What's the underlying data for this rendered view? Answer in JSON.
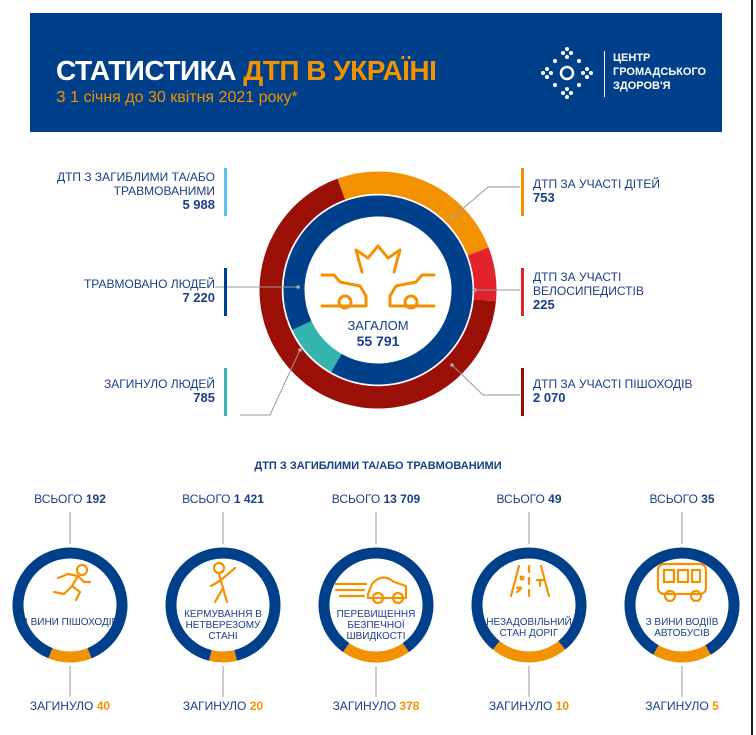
{
  "header": {
    "title_white": "СТАТИСТИКА",
    "title_accent": "ДТП В УКРАЇНІ",
    "subtitle": "З 1 січня до 30 квітня 2021 року*",
    "logo_text": [
      "ЦЕНТР",
      "ГРОМАДСЬКОГО",
      "ЗДОРОВ'Я"
    ]
  },
  "colors": {
    "blue": "#00408a",
    "orange": "#f39200",
    "dark_red": "#9b1006",
    "red": "#e3232b",
    "teal": "#33b5ae",
    "light_blue": "#5bc5f2"
  },
  "chart_data": [
    {
      "type": "pie",
      "variant": "donut-outer",
      "title": "",
      "center_label": "ЗАГАЛОМ",
      "center_value": "55 791",
      "slices": [
        {
          "name": "ДТП ЗА УЧАСТІ ДІТЕЙ",
          "value": 753,
          "display": "753",
          "color": "#f39200"
        },
        {
          "name": "ДТП ЗА УЧАСТІ ВЕЛОСИПЕДИСТІВ",
          "value": 225,
          "display": "225",
          "color": "#e3232b"
        },
        {
          "name": "ДТП ЗА УЧАСТІ ПІШОХОДІВ",
          "value": 2070,
          "display": "2 070",
          "color": "#9b1006"
        }
      ]
    },
    {
      "type": "pie",
      "variant": "donut-inner",
      "slices": [
        {
          "name": "ТРАВМОВАНО ЛЮДЕЙ",
          "value": 7220,
          "display": "7 220",
          "color": "#00408a"
        },
        {
          "name": "ЗАГИНУЛО ЛЮДЕЙ",
          "value": 785,
          "display": "785",
          "color": "#33b5ae"
        }
      ]
    },
    {
      "type": "pie",
      "variant": "small-donuts",
      "title": "ДТП З ЗАГИБЛИМИ ТА/АБО ТРАВМОВАНИМИ",
      "items": [
        {
          "caption": "З ВИНИ ПІШОХОДІВ",
          "total_label": "ВСЬОГО",
          "total": "192",
          "dead_label": "ЗАГИНУЛО",
          "dead": "40",
          "icon": "running-pedestrian-icon"
        },
        {
          "caption": "КЕРМУВАННЯ В НЕТВЕРЕЗОМУ СТАНІ",
          "total_label": "ВСЬОГО",
          "total": "1 421",
          "dead_label": "ЗАГИНУЛО",
          "dead": "20",
          "icon": "drunk-person-icon"
        },
        {
          "caption": "ПЕРЕВИЩЕННЯ БЕЗПЕЧНОЇ ШВИДКОСТІ",
          "total_label": "ВСЬОГО",
          "total": "13 709",
          "dead_label": "ЗАГИНУЛО",
          "dead": "378",
          "icon": "speeding-car-icon"
        },
        {
          "caption": "НЕЗАДОВІЛЬНИЙ СТАН ДОРІГ",
          "total_label": "ВСЬОГО",
          "total": "49",
          "dead_label": "ЗАГИНУЛО",
          "dead": "10",
          "icon": "road-icon"
        },
        {
          "caption": "З ВИНИ ВОДІЇВ АВТОБУСІВ",
          "total_label": "ВСЬОГО",
          "total": "35",
          "dead_label": "ЗАГИНУЛО",
          "dead": "5",
          "icon": "bus-icon"
        }
      ]
    }
  ],
  "labels": {
    "injured_or_dead": {
      "text": "ДТП З ЗАГИБЛИМИ ТА/АБО ТРАВМОВАНИМИ",
      "value": "5 988"
    }
  }
}
